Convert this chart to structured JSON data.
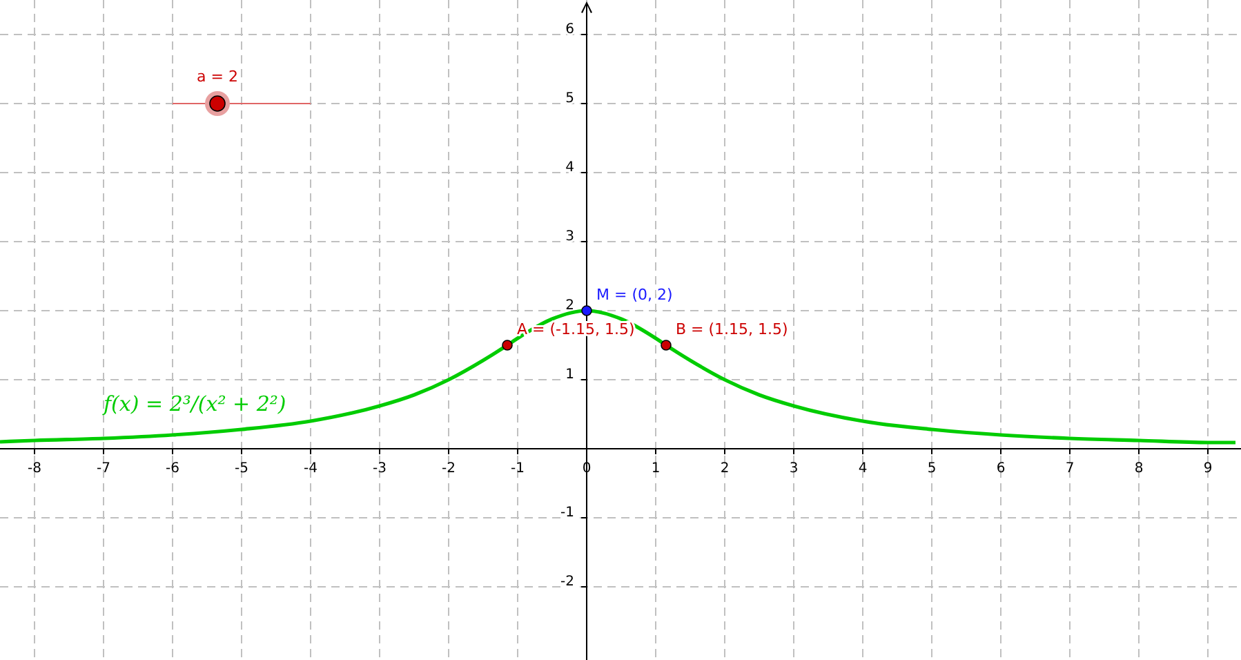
{
  "chart_data": {
    "type": "line",
    "xlim": [
      -8.5,
      9.48
    ],
    "ylim": [
      -3.06,
      6.5
    ],
    "xticks": [
      -8,
      -7,
      -6,
      -5,
      -4,
      -3,
      -2,
      -1,
      0,
      1,
      2,
      3,
      4,
      5,
      6,
      7,
      8,
      9
    ],
    "yticks": [
      -2,
      -1,
      1,
      2,
      3,
      4,
      5,
      6
    ],
    "grid": true,
    "series": [
      {
        "color": "#00cc00",
        "line_style": "solid",
        "marker": "none",
        "x": [
          -8.5,
          -8,
          -7,
          -6,
          -5,
          -4,
          -3,
          -2.5,
          -2,
          -1.5,
          -1.15,
          -1,
          -0.5,
          0,
          0.5,
          1,
          1.15,
          1.5,
          2,
          2.5,
          3,
          4,
          5,
          6,
          7,
          8,
          9,
          9.4
        ],
        "values": [
          0.1,
          0.12,
          0.15,
          0.2,
          0.28,
          0.4,
          0.62,
          0.78,
          1,
          1.28,
          1.5,
          1.6,
          1.88,
          2,
          1.88,
          1.6,
          1.5,
          1.28,
          1,
          0.78,
          0.62,
          0.4,
          0.28,
          0.2,
          0.15,
          0.12,
          0.09,
          0.09
        ]
      },
      {
        "type": "scatter",
        "color": "#cc0000",
        "marker": "circle",
        "x": [
          -1.15,
          1.15
        ],
        "values": [
          1.5,
          1.5
        ]
      },
      {
        "type": "scatter",
        "color": "#1a1aff",
        "marker": "circle",
        "x": [
          0
        ],
        "values": [
          2
        ]
      }
    ],
    "annotations": [
      {
        "text": "A = (-1.15, 1.5)",
        "x": -1.15,
        "y": 1.5
      },
      {
        "text": "B = (1.15, 1.5)",
        "x": 1.15,
        "y": 1.5
      },
      {
        "text": "M = (0, 2)",
        "x": 0,
        "y": 2
      },
      "a = 2",
      "f(x) = 2³/(x² + 2²)"
    ]
  }
}
